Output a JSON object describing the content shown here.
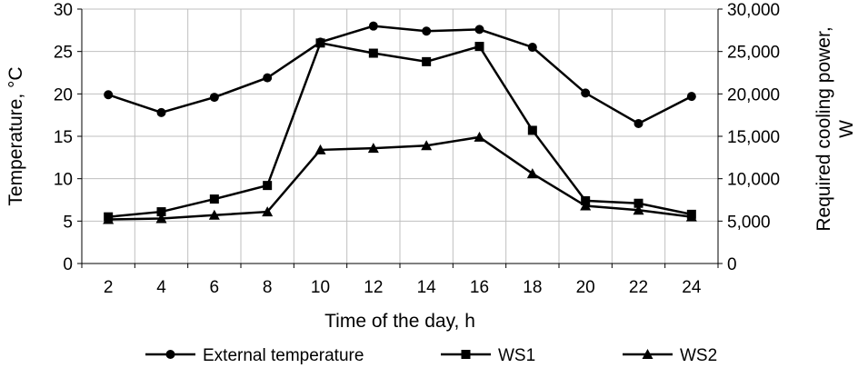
{
  "chart_data": {
    "type": "line",
    "x": [
      2,
      4,
      6,
      8,
      10,
      12,
      14,
      16,
      18,
      20,
      22,
      24
    ],
    "xlabel": "Time of the day, h",
    "ylabel": "Temperature, °C",
    "y2label_line1": "Required cooling power,",
    "y2label_line2": "W",
    "xlim": [
      2,
      24
    ],
    "ylim": [
      0,
      30
    ],
    "y2lim": [
      0,
      30000
    ],
    "xticks": [
      "2",
      "4",
      "6",
      "8",
      "10",
      "12",
      "14",
      "16",
      "18",
      "20",
      "22",
      "24"
    ],
    "yticks": [
      "0",
      "5",
      "10",
      "15",
      "20",
      "25",
      "30"
    ],
    "y2ticks": [
      "0",
      "5,000",
      "10,000",
      "15,000",
      "20,000",
      "25,000",
      "30,000"
    ],
    "grid": true,
    "legend_position": "bottom",
    "series": [
      {
        "name": "External temperature",
        "axis": "left",
        "marker": "circle",
        "values": [
          19.9,
          17.8,
          19.6,
          21.9,
          26.1,
          28.0,
          27.4,
          27.6,
          25.5,
          20.1,
          16.5,
          19.7
        ]
      },
      {
        "name": "WS1",
        "axis": "right",
        "marker": "square",
        "values": [
          5500,
          6100,
          7600,
          9200,
          26000,
          24800,
          23800,
          25600,
          15700,
          7400,
          7100,
          5800
        ]
      },
      {
        "name": "WS2",
        "axis": "right",
        "marker": "triangle",
        "values": [
          5200,
          5300,
          5700,
          6100,
          13400,
          13600,
          13900,
          14900,
          10600,
          6800,
          6300,
          5500
        ]
      }
    ]
  }
}
